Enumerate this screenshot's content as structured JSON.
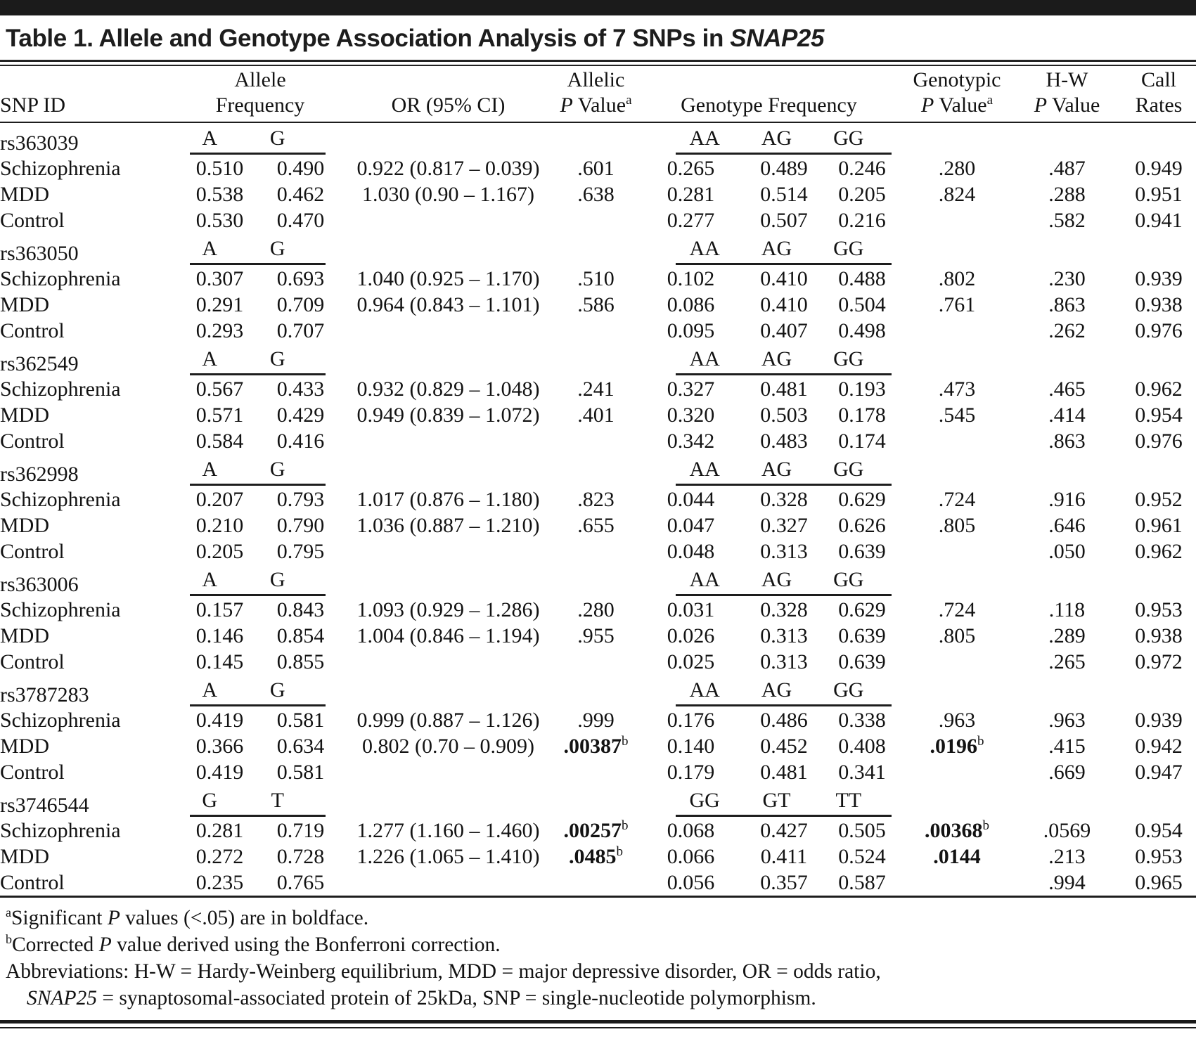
{
  "title": {
    "text": "Table 1. Allele and Genotype Association Analysis of 7 SNPs in ",
    "gene": "SNAP25"
  },
  "header": {
    "snp_id": "SNP ID",
    "allele": {
      "line1": "Allele",
      "line2": "Frequency"
    },
    "or_ci": "OR (95% CI)",
    "allelic": {
      "line1": "Allelic",
      "p": "P",
      "rest": " Value",
      "sup": "a"
    },
    "genotype_freq": "Genotype Frequency",
    "genotypic": {
      "line1": "Genotypic",
      "p": "P",
      "rest": " Value",
      "sup": "a"
    },
    "hw": {
      "line1": "H-W",
      "p": "P",
      "rest": " Value"
    },
    "call": {
      "line1": "Call",
      "line2": "Rates"
    }
  },
  "snps": [
    {
      "id": "rs363039",
      "alleles": [
        "A",
        "G"
      ],
      "genotypes": [
        "AA",
        "AG",
        "GG"
      ],
      "rows": [
        {
          "group": "Schizophrenia",
          "af": [
            "0.510",
            "0.490"
          ],
          "or": "0.922 (0.817 – 0.039)",
          "ap": {
            "v": ".601"
          },
          "gf": [
            "0.265",
            "0.489",
            "0.246"
          ],
          "gp": {
            "v": ".280"
          },
          "hw": ".487",
          "cr": "0.949"
        },
        {
          "group": "MDD",
          "af": [
            "0.538",
            "0.462"
          ],
          "or": "1.030 (0.90 – 1.167)",
          "ap": {
            "v": ".638"
          },
          "gf": [
            "0.281",
            "0.514",
            "0.205"
          ],
          "gp": {
            "v": ".824"
          },
          "hw": ".288",
          "cr": "0.951"
        },
        {
          "group": "Control",
          "af": [
            "0.530",
            "0.470"
          ],
          "or": "",
          "ap": null,
          "gf": [
            "0.277",
            "0.507",
            "0.216"
          ],
          "gp": null,
          "hw": ".582",
          "cr": "0.941"
        }
      ]
    },
    {
      "id": "rs363050",
      "alleles": [
        "A",
        "G"
      ],
      "genotypes": [
        "AA",
        "AG",
        "GG"
      ],
      "rows": [
        {
          "group": "Schizophrenia",
          "af": [
            "0.307",
            "0.693"
          ],
          "or": "1.040 (0.925 – 1.170)",
          "ap": {
            "v": ".510"
          },
          "gf": [
            "0.102",
            "0.410",
            "0.488"
          ],
          "gp": {
            "v": ".802"
          },
          "hw": ".230",
          "cr": "0.939"
        },
        {
          "group": "MDD",
          "af": [
            "0.291",
            "0.709"
          ],
          "or": "0.964 (0.843 – 1.101)",
          "ap": {
            "v": ".586"
          },
          "gf": [
            "0.086",
            "0.410",
            "0.504"
          ],
          "gp": {
            "v": ".761"
          },
          "hw": ".863",
          "cr": "0.938"
        },
        {
          "group": "Control",
          "af": [
            "0.293",
            "0.707"
          ],
          "or": "",
          "ap": null,
          "gf": [
            "0.095",
            "0.407",
            "0.498"
          ],
          "gp": null,
          "hw": ".262",
          "cr": "0.976"
        }
      ]
    },
    {
      "id": "rs362549",
      "alleles": [
        "A",
        "G"
      ],
      "genotypes": [
        "AA",
        "AG",
        "GG"
      ],
      "rows": [
        {
          "group": "Schizophrenia",
          "af": [
            "0.567",
            "0.433"
          ],
          "or": "0.932 (0.829 – 1.048)",
          "ap": {
            "v": ".241"
          },
          "gf": [
            "0.327",
            "0.481",
            "0.193"
          ],
          "gp": {
            "v": ".473"
          },
          "hw": ".465",
          "cr": "0.962"
        },
        {
          "group": "MDD",
          "af": [
            "0.571",
            "0.429"
          ],
          "or": "0.949 (0.839 – 1.072)",
          "ap": {
            "v": ".401"
          },
          "gf": [
            "0.320",
            "0.503",
            "0.178"
          ],
          "gp": {
            "v": ".545"
          },
          "hw": ".414",
          "cr": "0.954"
        },
        {
          "group": "Control",
          "af": [
            "0.584",
            "0.416"
          ],
          "or": "",
          "ap": null,
          "gf": [
            "0.342",
            "0.483",
            "0.174"
          ],
          "gp": null,
          "hw": ".863",
          "cr": "0.976"
        }
      ]
    },
    {
      "id": "rs362998",
      "alleles": [
        "A",
        "G"
      ],
      "genotypes": [
        "AA",
        "AG",
        "GG"
      ],
      "rows": [
        {
          "group": "Schizophrenia",
          "af": [
            "0.207",
            "0.793"
          ],
          "or": "1.017 (0.876 – 1.180)",
          "ap": {
            "v": ".823"
          },
          "gf": [
            "0.044",
            "0.328",
            "0.629"
          ],
          "gp": {
            "v": ".724"
          },
          "hw": ".916",
          "cr": "0.952"
        },
        {
          "group": "MDD",
          "af": [
            "0.210",
            "0.790"
          ],
          "or": "1.036 (0.887 – 1.210)",
          "ap": {
            "v": ".655"
          },
          "gf": [
            "0.047",
            "0.327",
            "0.626"
          ],
          "gp": {
            "v": ".805"
          },
          "hw": ".646",
          "cr": "0.961"
        },
        {
          "group": "Control",
          "af": [
            "0.205",
            "0.795"
          ],
          "or": "",
          "ap": null,
          "gf": [
            "0.048",
            "0.313",
            "0.639"
          ],
          "gp": null,
          "hw": ".050",
          "cr": "0.962"
        }
      ]
    },
    {
      "id": "rs363006",
      "alleles": [
        "A",
        "G"
      ],
      "genotypes": [
        "AA",
        "AG",
        "GG"
      ],
      "rows": [
        {
          "group": "Schizophrenia",
          "af": [
            "0.157",
            "0.843"
          ],
          "or": "1.093 (0.929 – 1.286)",
          "ap": {
            "v": ".280"
          },
          "gf": [
            "0.031",
            "0.328",
            "0.629"
          ],
          "gp": {
            "v": ".724"
          },
          "hw": ".118",
          "cr": "0.953"
        },
        {
          "group": "MDD",
          "af": [
            "0.146",
            "0.854"
          ],
          "or": "1.004 (0.846 – 1.194)",
          "ap": {
            "v": ".955"
          },
          "gf": [
            "0.026",
            "0.313",
            "0.639"
          ],
          "gp": {
            "v": ".805"
          },
          "hw": ".289",
          "cr": "0.938"
        },
        {
          "group": "Control",
          "af": [
            "0.145",
            "0.855"
          ],
          "or": "",
          "ap": null,
          "gf": [
            "0.025",
            "0.313",
            "0.639"
          ],
          "gp": null,
          "hw": ".265",
          "cr": "0.972"
        }
      ]
    },
    {
      "id": "rs3787283",
      "alleles": [
        "A",
        "G"
      ],
      "genotypes": [
        "AA",
        "AG",
        "GG"
      ],
      "rows": [
        {
          "group": "Schizophrenia",
          "af": [
            "0.419",
            "0.581"
          ],
          "or": "0.999 (0.887 – 1.126)",
          "ap": {
            "v": ".999"
          },
          "gf": [
            "0.176",
            "0.486",
            "0.338"
          ],
          "gp": {
            "v": ".963"
          },
          "hw": ".963",
          "cr": "0.939"
        },
        {
          "group": "MDD",
          "af": [
            "0.366",
            "0.634"
          ],
          "or": "0.802 (0.70 – 0.909)",
          "ap": {
            "v": ".00387",
            "b": true,
            "sup": "b"
          },
          "gf": [
            "0.140",
            "0.452",
            "0.408"
          ],
          "gp": {
            "v": ".0196",
            "b": true,
            "sup": "b"
          },
          "hw": ".415",
          "cr": "0.942"
        },
        {
          "group": "Control",
          "af": [
            "0.419",
            "0.581"
          ],
          "or": "",
          "ap": null,
          "gf": [
            "0.179",
            "0.481",
            "0.341"
          ],
          "gp": null,
          "hw": ".669",
          "cr": "0.947"
        }
      ]
    },
    {
      "id": "rs3746544",
      "alleles": [
        "G",
        "T"
      ],
      "genotypes": [
        "GG",
        "GT",
        "TT"
      ],
      "rows": [
        {
          "group": "Schizophrenia",
          "af": [
            "0.281",
            "0.719"
          ],
          "or": "1.277 (1.160 – 1.460)",
          "ap": {
            "v": ".00257",
            "b": true,
            "sup": "b"
          },
          "gf": [
            "0.068",
            "0.427",
            "0.505"
          ],
          "gp": {
            "v": ".00368",
            "b": true,
            "sup": "b"
          },
          "hw": ".0569",
          "cr": "0.954"
        },
        {
          "group": "MDD",
          "af": [
            "0.272",
            "0.728"
          ],
          "or": "1.226 (1.065 – 1.410)",
          "ap": {
            "v": ".0485",
            "b": true,
            "sup": "b"
          },
          "gf": [
            "0.066",
            "0.411",
            "0.524"
          ],
          "gp": {
            "v": ".0144",
            "b": true
          },
          "hw": ".213",
          "cr": "0.953"
        },
        {
          "group": "Control",
          "af": [
            "0.235",
            "0.765"
          ],
          "or": "",
          "ap": null,
          "gf": [
            "0.056",
            "0.357",
            "0.587"
          ],
          "gp": null,
          "hw": ".994",
          "cr": "0.965"
        }
      ]
    }
  ],
  "footnotes": {
    "a": {
      "sup": "a",
      "pre": "Significant ",
      "italic": "P",
      "post": " values (<.05) are in boldface."
    },
    "b": {
      "sup": "b",
      "pre": "Corrected ",
      "italic": "P",
      "post": " value derived using the Bonferroni correction."
    },
    "abbrev_line1": "Abbreviations: H-W = Hardy-Weinberg equilibrium, MDD = major depressive disorder, OR = odds ratio,",
    "abbrev_line2": {
      "italic": "SNAP25",
      "post": " = synaptosomal-associated protein of 25kDa, SNP = single-nucleotide polymorphism."
    }
  }
}
